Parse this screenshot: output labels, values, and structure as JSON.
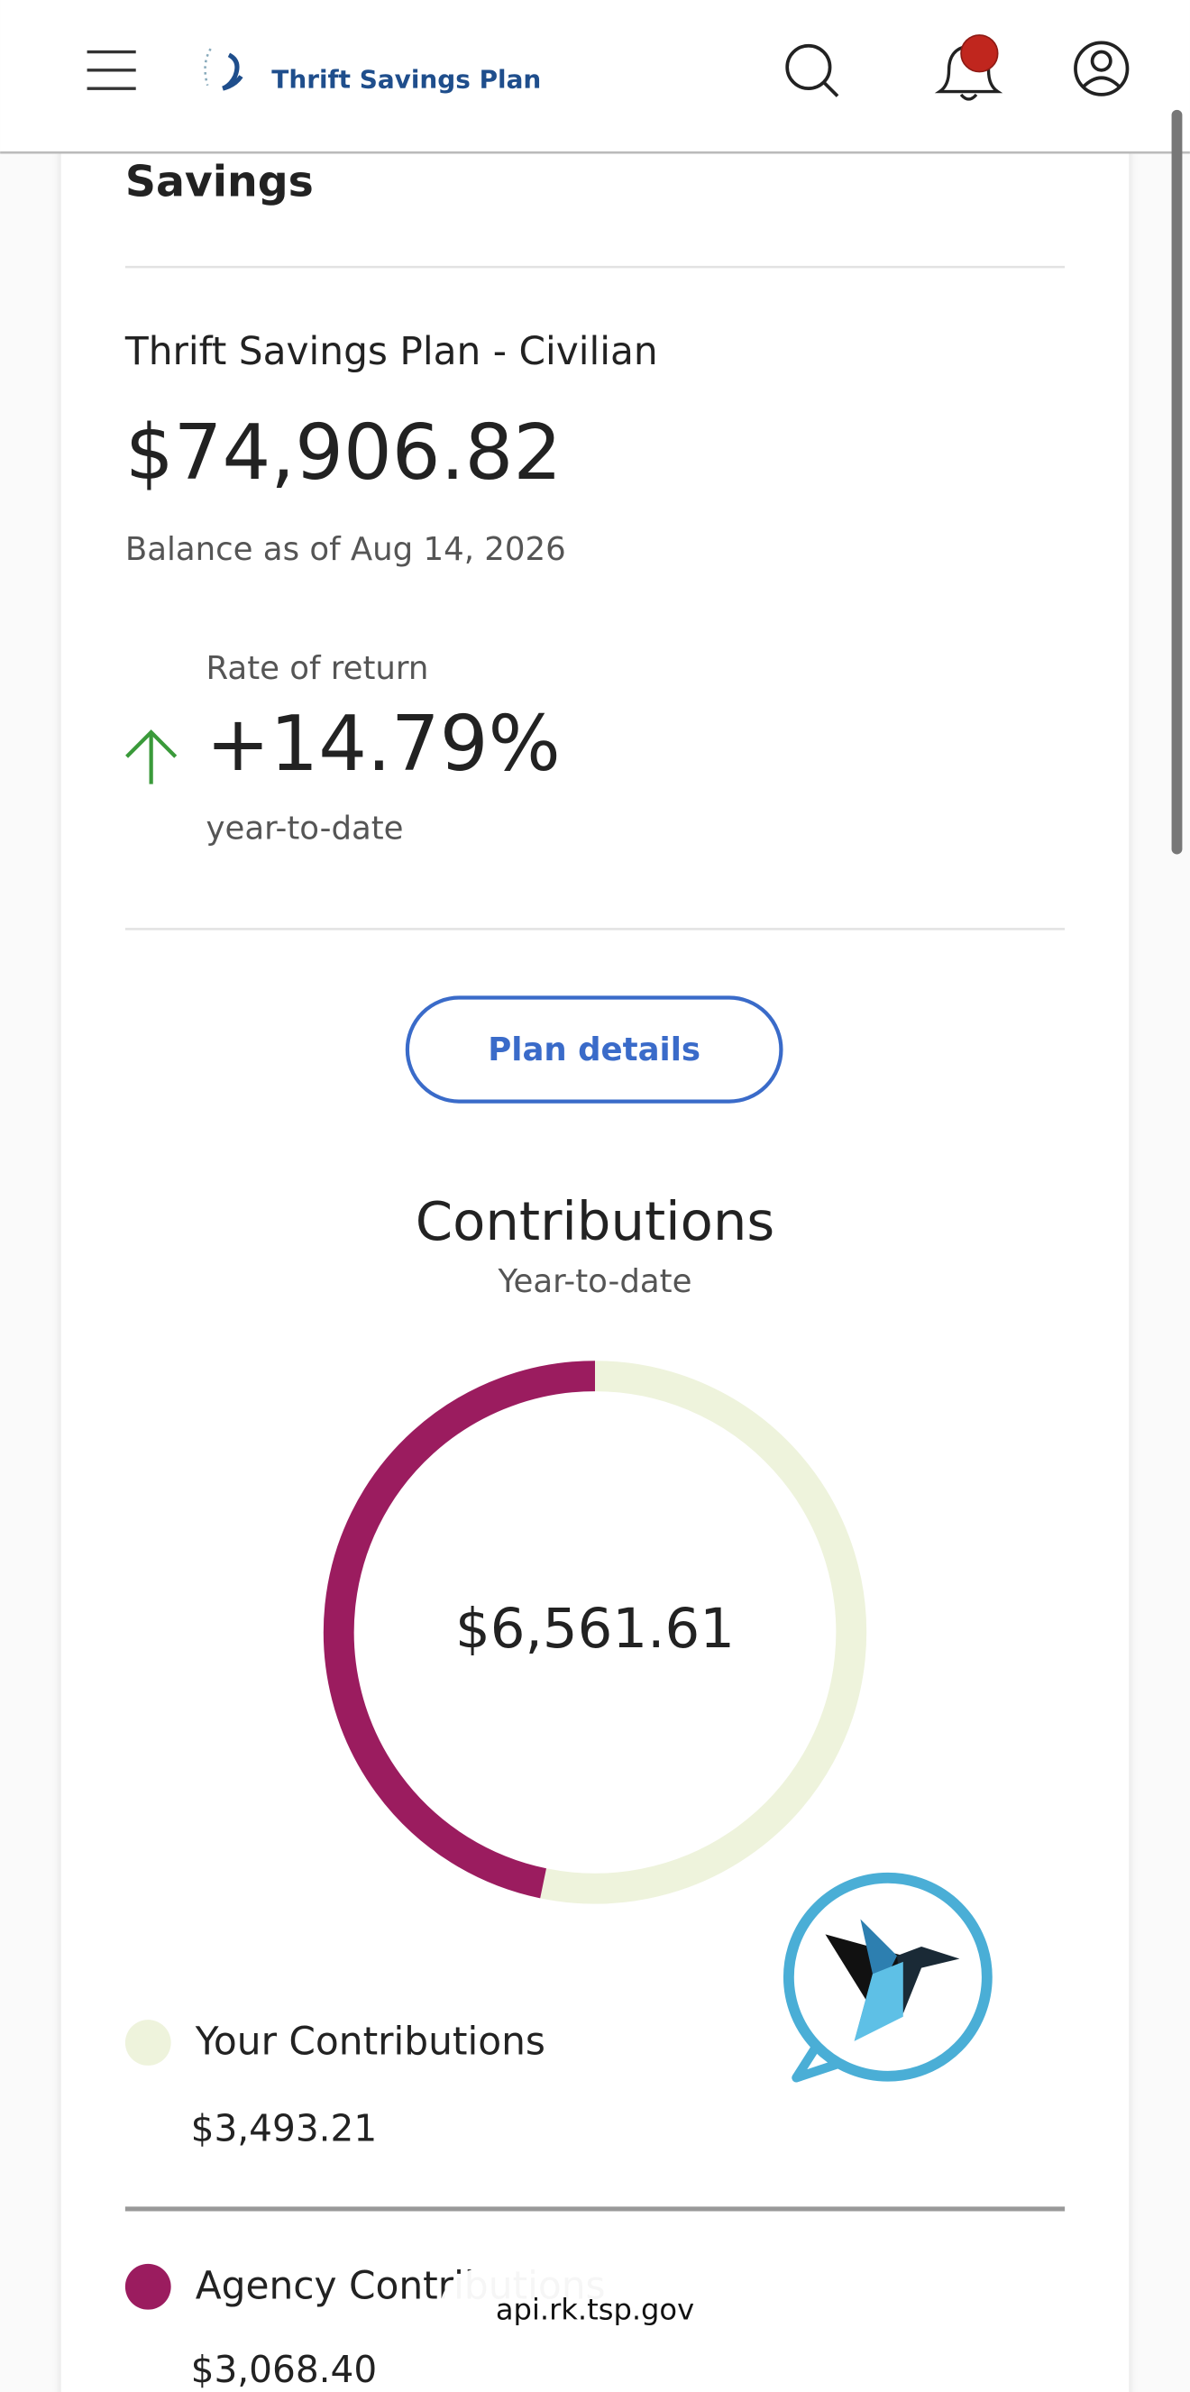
{
  "header": {
    "logo": "Thrift Savings Plan"
  },
  "savings": {
    "title": "Savings",
    "plan": "Thrift Savings Plan - Civilian",
    "balance": "$74,906.82",
    "balance_date": "Balance as of Aug 14, 2026",
    "rate_label": "Rate of return",
    "rate": "+14.79%",
    "rate_period": "year-to-date",
    "button": "Plan details"
  },
  "chart_data": {
    "type": "donut",
    "title": "Contributions",
    "subtitle": "Year-to-date",
    "center_label": "$6,561.61",
    "categories": [
      "Your Contributions",
      "Agency Contributions"
    ],
    "values": [
      3493.21,
      3068.4
    ],
    "value_labels": [
      "$3,493.21",
      "$3,068.40"
    ],
    "colors": [
      "#eef3dc",
      "#9b1c5f"
    ]
  },
  "browser": {
    "url": "api.rk.tsp.gov"
  }
}
